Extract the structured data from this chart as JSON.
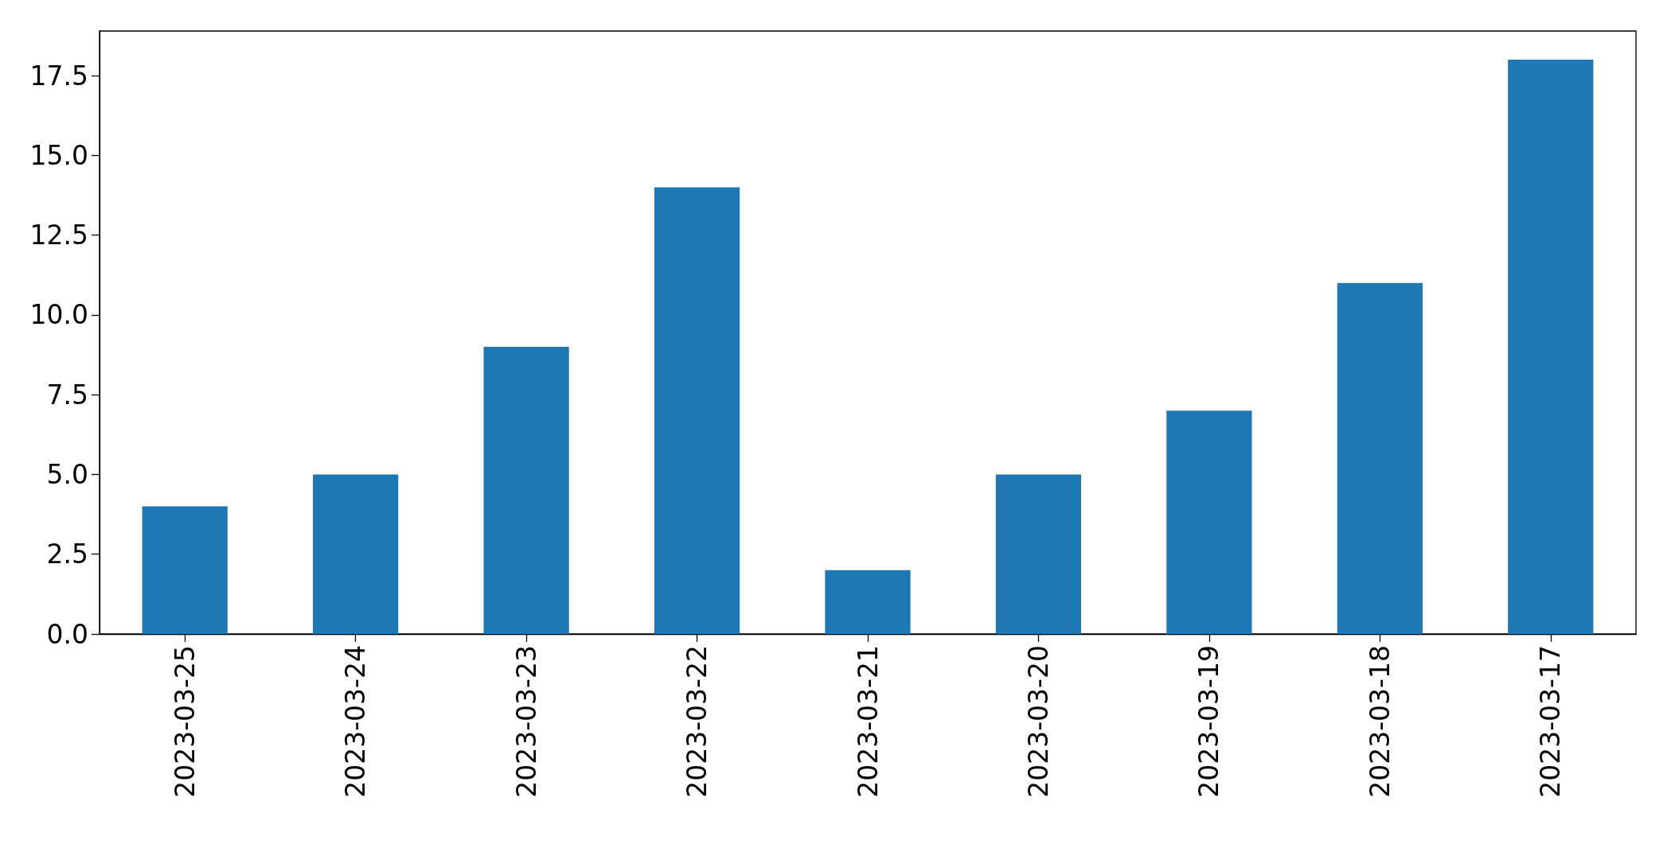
{
  "chart_data": {
    "type": "bar",
    "categories": [
      "2023-03-25",
      "2023-03-24",
      "2023-03-23",
      "2023-03-22",
      "2023-03-21",
      "2023-03-20",
      "2023-03-19",
      "2023-03-18",
      "2023-03-17"
    ],
    "values": [
      4,
      5,
      9,
      14,
      2,
      5,
      7,
      11,
      18
    ],
    "color": "#1f77b4",
    "ylim": [
      0,
      18.9
    ],
    "yticks": [
      {
        "value": 0,
        "label": "0.0"
      },
      2.5,
      {
        "value": 5,
        "label": "5.0"
      },
      7.5,
      {
        "value": 10,
        "label": "10.0"
      },
      12.5,
      {
        "value": 15,
        "label": "15.0"
      },
      17.5
    ]
  }
}
